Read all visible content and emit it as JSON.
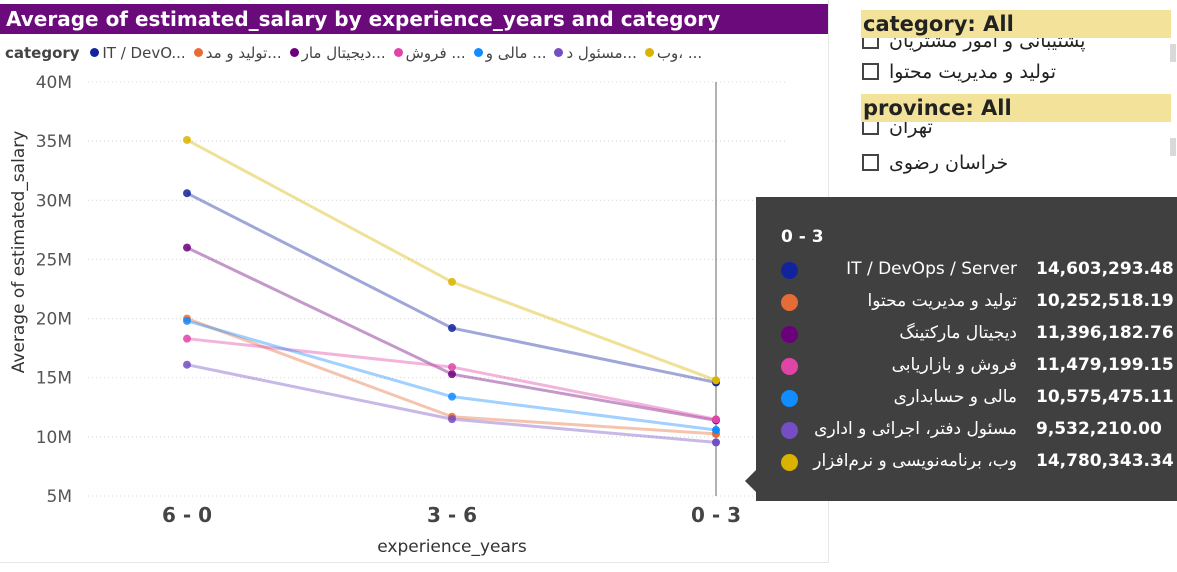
{
  "chart": {
    "title": "Average of estimated_salary by experience_years and category",
    "legend_title": "category",
    "legend_items": [
      {
        "label": "IT / DevO...",
        "color": "#12239e"
      },
      {
        "label": "تولید و مد...",
        "color": "#e66c37"
      },
      {
        "label": "دیجیتال مار...",
        "color": "#6b007b"
      },
      {
        "label": "فروش ...",
        "color": "#e044a7"
      },
      {
        "label": "مالی و ...",
        "color": "#118dff"
      },
      {
        "label": "مسئول د...",
        "color": "#744ec2"
      },
      {
        "label": "وب، ...",
        "color": "#d9b300"
      }
    ]
  },
  "chart_data": {
    "type": "line",
    "title": "Average of estimated_salary by experience_years and category",
    "xlabel": "experience_years",
    "ylabel": "Average of estimated_salary",
    "categories": [
      "6 - 0",
      "3 - 6",
      "0 - 3"
    ],
    "yticks": [
      "5M",
      "10M",
      "15M",
      "20M",
      "25M",
      "30M",
      "35M",
      "40M"
    ],
    "ylim": [
      5000000,
      40000000
    ],
    "grid": true,
    "legend_position": "top",
    "highlight_category": "0 - 3",
    "series": [
      {
        "name": "IT / DevOps / Server",
        "color": "#12239e",
        "values": [
          30600000,
          19200000,
          14603293.48
        ]
      },
      {
        "name": "تولید و مدیریت محتوا",
        "color": "#e66c37",
        "values": [
          20000000,
          11700000,
          10252518.19
        ]
      },
      {
        "name": "دیجیتال مارکتینگ",
        "color": "#6b007b",
        "values": [
          26000000,
          15300000,
          11396182.76
        ]
      },
      {
        "name": "فروش و بازاریابی",
        "color": "#e044a7",
        "values": [
          18300000,
          15900000,
          11479199.15
        ]
      },
      {
        "name": "مالی و حسابداری",
        "color": "#118dff",
        "values": [
          19800000,
          13400000,
          10575475.11
        ]
      },
      {
        "name": "مسئول دفتر، اجرائی و اداری",
        "color": "#744ec2",
        "values": [
          16100000,
          11500000,
          9532210.0
        ]
      },
      {
        "name": "وب، برنامه‌نویسی و نرم‌افزار",
        "color": "#d9b300",
        "values": [
          35100000,
          23100000,
          14780343.34
        ]
      }
    ]
  },
  "slicers": {
    "category": {
      "header": "category: All",
      "partial_item": "پشتیبانی و امور مشتریان",
      "items": [
        "تولید و مدیریت محتوا"
      ]
    },
    "province": {
      "header": "province: All",
      "partial_item": "تهران",
      "items": [
        "خراسان رضوی"
      ]
    }
  },
  "tooltip": {
    "header": "0 - 3",
    "rows": [
      {
        "name": "IT / DevOps / Server",
        "value": "14,603,293.48",
        "color": "#12239e"
      },
      {
        "name": "تولید و مدیریت محتوا",
        "value": "10,252,518.19",
        "color": "#e66c37"
      },
      {
        "name": "دیجیتال مارکتینگ",
        "value": "11,396,182.76",
        "color": "#6b007b"
      },
      {
        "name": "فروش و بازاریابی",
        "value": "11,479,199.15",
        "color": "#e044a7"
      },
      {
        "name": "مالی و حسابداری",
        "value": "10,575,475.11",
        "color": "#118dff"
      },
      {
        "name": "مسئول دفتر، اجرائی و اداری",
        "value": "9,532,210.00",
        "color": "#744ec2"
      },
      {
        "name": "وب، برنامه‌نویسی و نرم‌افزار",
        "value": "14,780,343.34",
        "color": "#d9b300"
      }
    ]
  }
}
